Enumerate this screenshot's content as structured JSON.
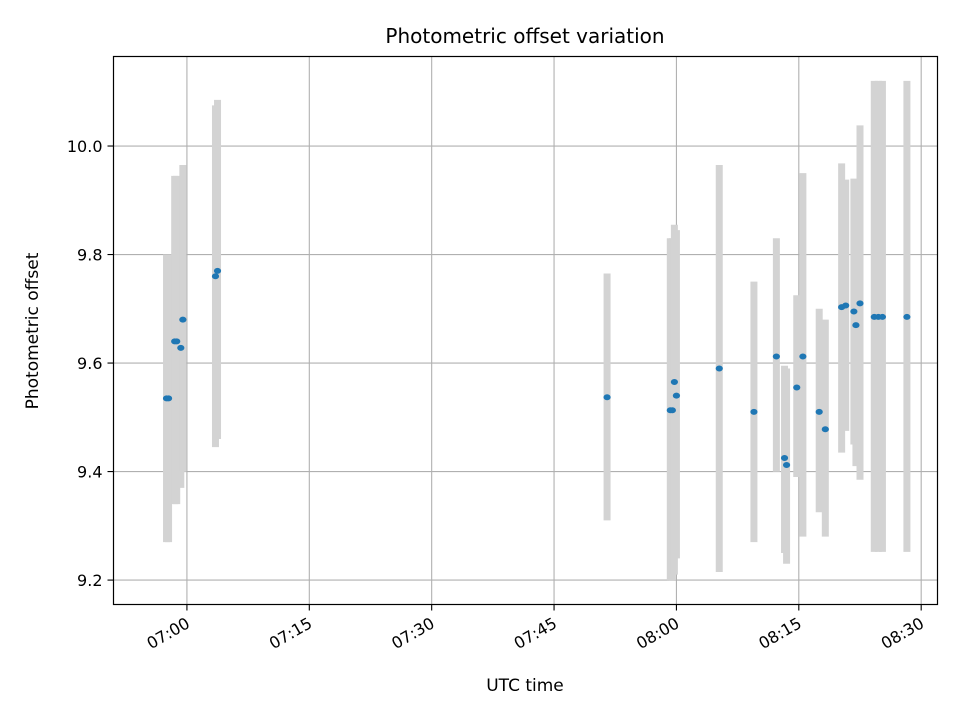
{
  "chart_data": {
    "type": "scatter",
    "title": "Photometric offset variation",
    "xlabel": "UTC time",
    "ylabel": "Photometric offset",
    "x_unit": "minutes past 00:00 UTC",
    "xlim": [
      "06:51",
      "08:32"
    ],
    "ylim": [
      9.155,
      10.165
    ],
    "x_ticks": [
      "07:00",
      "07:15",
      "07:30",
      "07:45",
      "08:00",
      "08:15",
      "08:30"
    ],
    "y_ticks": [
      "9.2",
      "9.4",
      "9.6",
      "9.8",
      "10.0"
    ],
    "grid": true,
    "colors": {
      "point": "#1f77b4",
      "errorbar": "#d3d3d3",
      "grid": "#b0b0b0"
    },
    "points": [
      {
        "x": "06:57:30",
        "y": 9.535,
        "ymin": 9.27,
        "ymax": 9.8
      },
      {
        "x": "06:57:45",
        "y": 9.535,
        "ymin": 9.27,
        "ymax": 9.8
      },
      {
        "x": "06:58:30",
        "y": 9.64,
        "ymin": 9.34,
        "ymax": 9.945
      },
      {
        "x": "06:58:45",
        "y": 9.64,
        "ymin": 9.34,
        "ymax": 9.945
      },
      {
        "x": "06:59:15",
        "y": 9.628,
        "ymin": 9.37,
        "ymax": 9.89
      },
      {
        "x": "06:59:30",
        "y": 9.68,
        "ymin": 9.4,
        "ymax": 9.965
      },
      {
        "x": "07:03:30",
        "y": 9.76,
        "ymin": 9.445,
        "ymax": 10.075
      },
      {
        "x": "07:03:45",
        "y": 9.77,
        "ymin": 9.46,
        "ymax": 10.085
      },
      {
        "x": "07:51:30",
        "y": 9.537,
        "ymin": 9.31,
        "ymax": 9.765
      },
      {
        "x": "07:59:15",
        "y": 9.513,
        "ymin": 9.2,
        "ymax": 9.83
      },
      {
        "x": "07:59:30",
        "y": 9.513,
        "ymin": 9.2,
        "ymax": 9.83
      },
      {
        "x": "07:59:45",
        "y": 9.565,
        "ymin": 9.21,
        "ymax": 9.855
      },
      {
        "x": "08:00:00",
        "y": 9.54,
        "ymin": 9.24,
        "ymax": 9.845
      },
      {
        "x": "08:05:15",
        "y": 9.59,
        "ymin": 9.215,
        "ymax": 9.965
      },
      {
        "x": "08:09:30",
        "y": 9.51,
        "ymin": 9.27,
        "ymax": 9.75
      },
      {
        "x": "08:12:15",
        "y": 9.612,
        "ymin": 9.4,
        "ymax": 9.83
      },
      {
        "x": "08:13:15",
        "y": 9.425,
        "ymin": 9.25,
        "ymax": 9.595
      },
      {
        "x": "08:13:30",
        "y": 9.412,
        "ymin": 9.23,
        "ymax": 9.59
      },
      {
        "x": "08:14:45",
        "y": 9.555,
        "ymin": 9.39,
        "ymax": 9.725
      },
      {
        "x": "08:15:30",
        "y": 9.612,
        "ymin": 9.28,
        "ymax": 9.95
      },
      {
        "x": "08:17:30",
        "y": 9.51,
        "ymin": 9.325,
        "ymax": 9.7
      },
      {
        "x": "08:18:15",
        "y": 9.478,
        "ymin": 9.28,
        "ymax": 9.68
      },
      {
        "x": "08:20:15",
        "y": 9.703,
        "ymin": 9.435,
        "ymax": 9.968
      },
      {
        "x": "08:20:45",
        "y": 9.706,
        "ymin": 9.475,
        "ymax": 9.938
      },
      {
        "x": "08:21:45",
        "y": 9.695,
        "ymin": 9.45,
        "ymax": 9.94
      },
      {
        "x": "08:22:00",
        "y": 9.67,
        "ymin": 9.41,
        "ymax": 9.93
      },
      {
        "x": "08:22:30",
        "y": 9.71,
        "ymin": 9.385,
        "ymax": 10.038
      },
      {
        "x": "08:24:15",
        "y": 9.685,
        "ymin": 9.252,
        "ymax": 10.12
      },
      {
        "x": "08:24:45",
        "y": 9.685,
        "ymin": 9.252,
        "ymax": 10.12
      },
      {
        "x": "08:25:15",
        "y": 9.685,
        "ymin": 9.252,
        "ymax": 10.12
      },
      {
        "x": "08:28:15",
        "y": 9.685,
        "ymin": 9.252,
        "ymax": 10.12
      }
    ]
  }
}
